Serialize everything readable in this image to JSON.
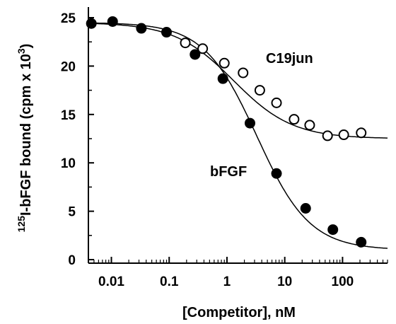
{
  "chart_data": {
    "type": "scatter",
    "xlabel": "[Competitor], nM",
    "ylabel_prefix": "125",
    "ylabel_main": "I-bFGF bound (cpm x 10",
    "ylabel_exp": "3",
    "ylabel_suffix": ")",
    "x_scale": "log",
    "xlim": [
      0.004,
      600
    ],
    "ylim": [
      0,
      25
    ],
    "x_ticks": [
      0.01,
      0.1,
      1,
      10,
      100
    ],
    "x_tick_labels": [
      "0.01",
      "0.1",
      "1",
      "10",
      "100"
    ],
    "y_ticks": [
      0,
      5,
      10,
      15,
      20,
      25
    ],
    "y_tick_labels": [
      "0",
      "5",
      "10",
      "15",
      "20",
      "25"
    ],
    "grid": false,
    "series": [
      {
        "name": "bFGF",
        "marker": "filled-circle",
        "color": "#000000",
        "points": [
          {
            "x": 0.0045,
            "y": 24.4
          },
          {
            "x": 0.0105,
            "y": 24.6
          },
          {
            "x": 0.033,
            "y": 23.9
          },
          {
            "x": 0.09,
            "y": 23.5
          },
          {
            "x": 0.28,
            "y": 21.2
          },
          {
            "x": 0.85,
            "y": 18.7
          },
          {
            "x": 2.5,
            "y": 14.1
          },
          {
            "x": 7.2,
            "y": 8.9
          },
          {
            "x": 23,
            "y": 5.3
          },
          {
            "x": 68,
            "y": 3.1
          },
          {
            "x": 210,
            "y": 1.8
          }
        ],
        "fit": {
          "top": 24.5,
          "bottom": 1.0,
          "ec50": 3.3,
          "hill": 0.95
        }
      },
      {
        "name": "C19jun",
        "marker": "open-circle",
        "color": "#000000",
        "points": [
          {
            "x": 0.19,
            "y": 22.4
          },
          {
            "x": 0.38,
            "y": 21.8
          },
          {
            "x": 0.9,
            "y": 20.3
          },
          {
            "x": 1.9,
            "y": 19.3
          },
          {
            "x": 3.7,
            "y": 17.5
          },
          {
            "x": 7.2,
            "y": 16.2
          },
          {
            "x": 14.5,
            "y": 14.5
          },
          {
            "x": 27,
            "y": 13.9
          },
          {
            "x": 55,
            "y": 12.8
          },
          {
            "x": 105,
            "y": 12.9
          },
          {
            "x": 210,
            "y": 13.1
          }
        ],
        "fit": {
          "top": 24.5,
          "bottom": 12.5,
          "ec50": 1.3,
          "hill": 0.85
        }
      }
    ]
  }
}
